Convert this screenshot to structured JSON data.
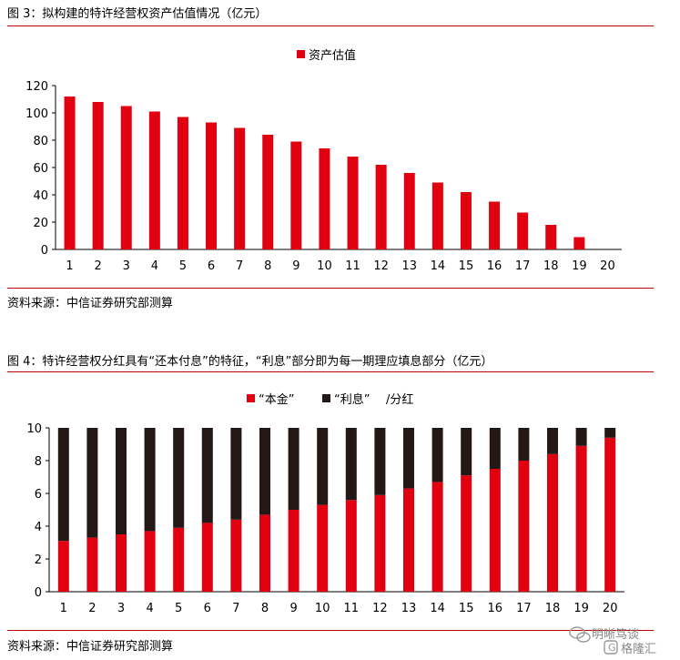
{
  "figure3": {
    "title": "图 3：拟构建的特许经营权资产估值情况（亿元）",
    "source": "资料来源：中信证券研究部测算"
  },
  "figure4": {
    "title": "图 4：特许经营权分红具有“还本付息”的特征，“利息”部分即为每一期理应填息部分（亿元）",
    "source": "资料来源：中信证券研究部测算"
  },
  "watermark": {
    "line1": "明晰笃谈",
    "line2": "格隆汇"
  },
  "colors": {
    "red": "#e0000f",
    "black": "#231815",
    "rule": "#c00000"
  },
  "chart_data": [
    {
      "type": "bar",
      "categories": [
        "1",
        "2",
        "3",
        "4",
        "5",
        "6",
        "7",
        "8",
        "9",
        "10",
        "11",
        "12",
        "13",
        "14",
        "15",
        "16",
        "17",
        "18",
        "19",
        "20"
      ],
      "series": [
        {
          "name": "资产估值",
          "values": [
            112,
            108,
            105,
            101,
            97,
            93,
            89,
            84,
            79,
            74,
            68,
            62,
            56,
            49,
            42,
            35,
            27,
            18,
            9,
            0
          ]
        }
      ],
      "ylim": [
        0,
        120
      ],
      "yticks": [
        "0",
        "20",
        "40",
        "60",
        "80",
        "100",
        "120"
      ],
      "legend": "top-center",
      "grid": false
    },
    {
      "type": "bar",
      "stacked": true,
      "categories": [
        "1",
        "2",
        "3",
        "4",
        "5",
        "6",
        "7",
        "8",
        "9",
        "10",
        "11",
        "12",
        "13",
        "14",
        "15",
        "16",
        "17",
        "18",
        "19",
        "20"
      ],
      "series": [
        {
          "name": "“本金”",
          "values": [
            3.1,
            3.3,
            3.5,
            3.7,
            3.9,
            4.2,
            4.4,
            4.7,
            5.0,
            5.3,
            5.6,
            5.9,
            6.3,
            6.7,
            7.1,
            7.5,
            8.0,
            8.4,
            8.9,
            9.4
          ]
        },
        {
          "name": "“利息”",
          "values": [
            6.9,
            6.7,
            6.5,
            6.3,
            6.1,
            5.8,
            5.6,
            5.3,
            5.0,
            4.7,
            4.4,
            4.1,
            3.7,
            3.3,
            2.9,
            2.5,
            2.0,
            1.6,
            1.1,
            0.6
          ]
        }
      ],
      "legend_suffix": "/分红",
      "ylim": [
        0,
        10
      ],
      "yticks": [
        "0",
        "2",
        "4",
        "6",
        "8",
        "10"
      ],
      "legend": "top-center",
      "grid": false
    }
  ]
}
